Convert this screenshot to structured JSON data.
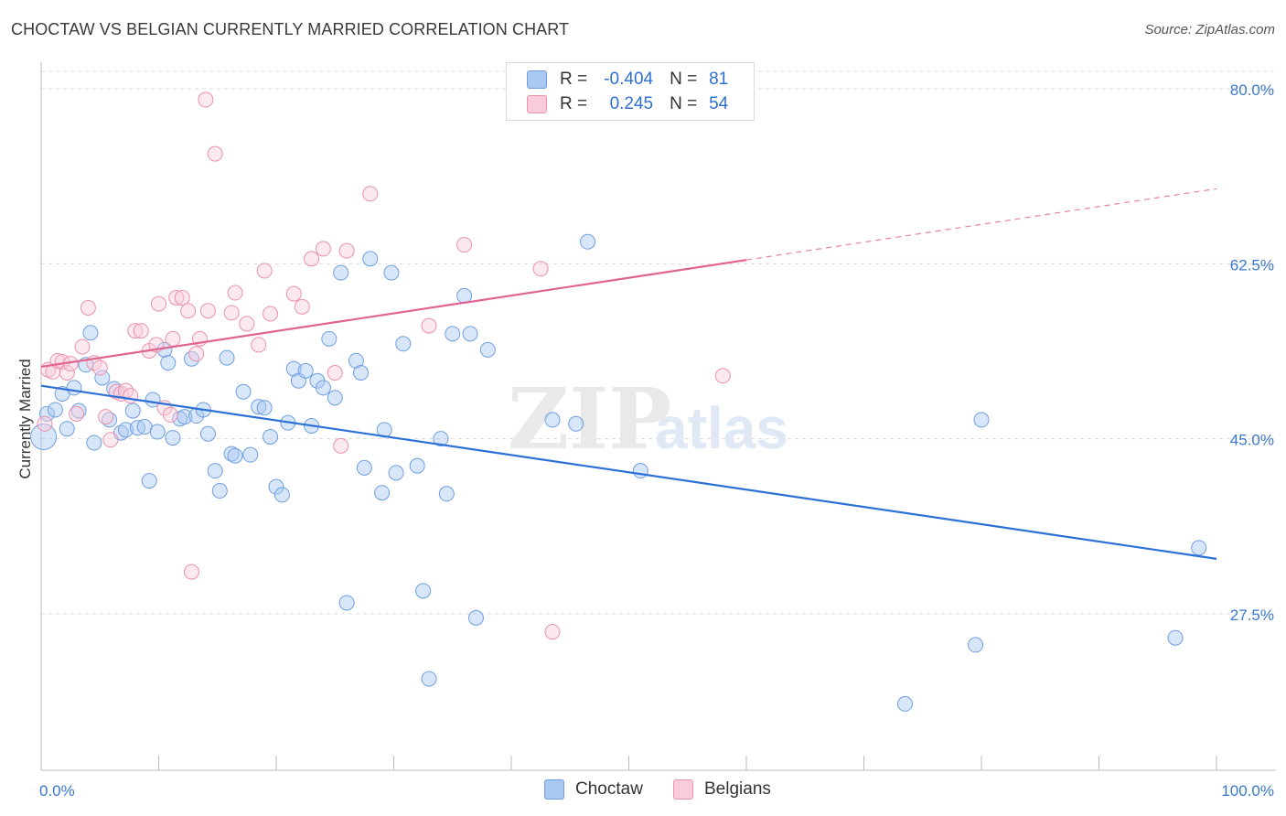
{
  "header": {
    "title": "CHOCTAW VS BELGIAN CURRENTLY MARRIED CORRELATION CHART",
    "source": "Source: ZipAtlas.com"
  },
  "watermark": {
    "zip": "ZIP",
    "atlas": "atlas"
  },
  "legend": {
    "r_label": "R =",
    "n_label": "N =",
    "rows": [
      {
        "name": "Choctaw",
        "r": "-0.404",
        "n": "81",
        "color": "#a9c8f2"
      },
      {
        "name": "Belgians",
        "r": "0.245",
        "n": "54",
        "color": "#f5b8cc"
      }
    ]
  },
  "colors": {
    "choctaw_stroke": "#6f9fe0",
    "belgian_stroke": "#ea92b0",
    "choctaw_line": "#2b70d6",
    "belgian_line": "#e0648f",
    "tick_text": "#3a78cc"
  },
  "chart_data": {
    "type": "scatter",
    "title": "CHOCTAW VS BELGIAN CURRENTLY MARRIED CORRELATION CHART",
    "xlabel": "",
    "ylabel": "Currently Married",
    "xlim": [
      0,
      100
    ],
    "ylim": [
      12,
      83
    ],
    "y_ticks": [
      "80.0%",
      "62.5%",
      "45.0%",
      "27.5%"
    ],
    "y_tick_values": [
      80,
      62.5,
      45,
      27.5
    ],
    "x_tick_labels": [
      "0.0%",
      "100.0%"
    ],
    "x_tick_label_values": [
      0,
      100
    ],
    "x_minor_ticks": [
      0,
      10,
      20,
      30,
      40,
      50,
      60,
      70,
      80,
      90,
      100
    ],
    "grid": true,
    "legend_position": "top-center",
    "series": [
      {
        "name": "Choctaw",
        "trend": {
          "x": [
            0,
            100
          ],
          "y": [
            50.3,
            33.0
          ],
          "dash_from": null
        },
        "points": [
          [
            0.2,
            45.2
          ],
          [
            0.5,
            47.5
          ],
          [
            1.2,
            47.9
          ],
          [
            1.8,
            49.5
          ],
          [
            2.2,
            46.0
          ],
          [
            2.8,
            50.1
          ],
          [
            3.2,
            47.8
          ],
          [
            3.8,
            52.4
          ],
          [
            4.2,
            55.6
          ],
          [
            4.5,
            44.6
          ],
          [
            5.2,
            51.1
          ],
          [
            5.8,
            46.9
          ],
          [
            6.2,
            50.0
          ],
          [
            6.8,
            45.6
          ],
          [
            7.2,
            45.9
          ],
          [
            7.8,
            47.8
          ],
          [
            8.2,
            46.1
          ],
          [
            8.8,
            46.2
          ],
          [
            9.2,
            40.8
          ],
          [
            9.5,
            48.9
          ],
          [
            9.9,
            45.7
          ],
          [
            10.5,
            53.9
          ],
          [
            10.8,
            52.6
          ],
          [
            11.2,
            45.1
          ],
          [
            11.8,
            47.0
          ],
          [
            12.2,
            47.2
          ],
          [
            12.8,
            53.0
          ],
          [
            13.2,
            47.3
          ],
          [
            13.8,
            47.9
          ],
          [
            14.2,
            45.5
          ],
          [
            14.8,
            41.8
          ],
          [
            15.2,
            39.8
          ],
          [
            15.8,
            53.1
          ],
          [
            16.2,
            43.5
          ],
          [
            16.5,
            43.3
          ],
          [
            17.2,
            49.7
          ],
          [
            17.8,
            43.4
          ],
          [
            18.5,
            48.2
          ],
          [
            19.0,
            48.1
          ],
          [
            19.5,
            45.2
          ],
          [
            20.0,
            40.2
          ],
          [
            20.5,
            39.4
          ],
          [
            21.0,
            46.6
          ],
          [
            21.5,
            52.0
          ],
          [
            21.9,
            50.8
          ],
          [
            22.5,
            51.8
          ],
          [
            23.0,
            46.3
          ],
          [
            23.5,
            50.8
          ],
          [
            24.0,
            50.1
          ],
          [
            24.5,
            55.0
          ],
          [
            25.0,
            49.1
          ],
          [
            25.5,
            61.6
          ],
          [
            26.0,
            28.6
          ],
          [
            26.8,
            52.8
          ],
          [
            27.2,
            51.6
          ],
          [
            27.5,
            42.1
          ],
          [
            28.0,
            63.0
          ],
          [
            29.0,
            39.6
          ],
          [
            29.2,
            45.9
          ],
          [
            29.8,
            61.6
          ],
          [
            30.2,
            41.6
          ],
          [
            30.8,
            54.5
          ],
          [
            32.0,
            42.3
          ],
          [
            32.5,
            29.8
          ],
          [
            34.0,
            45.0
          ],
          [
            34.5,
            39.5
          ],
          [
            35.0,
            55.5
          ],
          [
            36.0,
            59.3
          ],
          [
            36.5,
            55.5
          ],
          [
            37.0,
            27.1
          ],
          [
            38.0,
            53.9
          ],
          [
            33.0,
            21.0
          ],
          [
            43.5,
            46.9
          ],
          [
            45.5,
            46.5
          ],
          [
            46.5,
            64.7
          ],
          [
            51.0,
            41.8
          ],
          [
            80.0,
            46.9
          ],
          [
            79.5,
            24.4
          ],
          [
            73.5,
            18.5
          ],
          [
            96.5,
            25.1
          ],
          [
            98.5,
            34.1
          ]
        ]
      },
      {
        "name": "Belgians",
        "trend": {
          "x": [
            0,
            100
          ],
          "y": [
            52.2,
            70.0
          ],
          "dash_from": 60
        },
        "points": [
          [
            0.3,
            46.5
          ],
          [
            0.6,
            51.9
          ],
          [
            1.0,
            51.7
          ],
          [
            1.4,
            52.8
          ],
          [
            1.8,
            52.7
          ],
          [
            2.2,
            51.6
          ],
          [
            2.5,
            52.5
          ],
          [
            3.0,
            47.5
          ],
          [
            3.5,
            54.2
          ],
          [
            4.0,
            58.1
          ],
          [
            4.5,
            52.6
          ],
          [
            5.0,
            52.1
          ],
          [
            5.5,
            47.2
          ],
          [
            5.9,
            44.9
          ],
          [
            6.4,
            49.7
          ],
          [
            6.8,
            49.5
          ],
          [
            7.2,
            49.8
          ],
          [
            7.6,
            49.3
          ],
          [
            8.0,
            55.8
          ],
          [
            8.5,
            55.8
          ],
          [
            9.2,
            53.8
          ],
          [
            9.8,
            54.4
          ],
          [
            10.0,
            58.5
          ],
          [
            10.5,
            48.1
          ],
          [
            11.0,
            47.4
          ],
          [
            11.2,
            55.0
          ],
          [
            11.5,
            59.1
          ],
          [
            12.0,
            59.1
          ],
          [
            12.5,
            57.8
          ],
          [
            12.8,
            31.7
          ],
          [
            13.2,
            53.5
          ],
          [
            13.5,
            55.0
          ],
          [
            14.2,
            57.8
          ],
          [
            14.0,
            78.9
          ],
          [
            14.8,
            73.5
          ],
          [
            16.2,
            57.6
          ],
          [
            16.5,
            59.6
          ],
          [
            17.5,
            56.5
          ],
          [
            18.5,
            54.4
          ],
          [
            19.0,
            61.8
          ],
          [
            19.5,
            57.5
          ],
          [
            21.5,
            59.5
          ],
          [
            22.2,
            58.2
          ],
          [
            23.0,
            63.0
          ],
          [
            24.0,
            64.0
          ],
          [
            25.0,
            51.6
          ],
          [
            25.5,
            44.3
          ],
          [
            26.0,
            63.8
          ],
          [
            28.0,
            69.5
          ],
          [
            33.0,
            56.3
          ],
          [
            36.0,
            64.4
          ],
          [
            42.5,
            62.0
          ],
          [
            43.5,
            25.7
          ],
          [
            58.0,
            51.3
          ]
        ]
      }
    ]
  }
}
